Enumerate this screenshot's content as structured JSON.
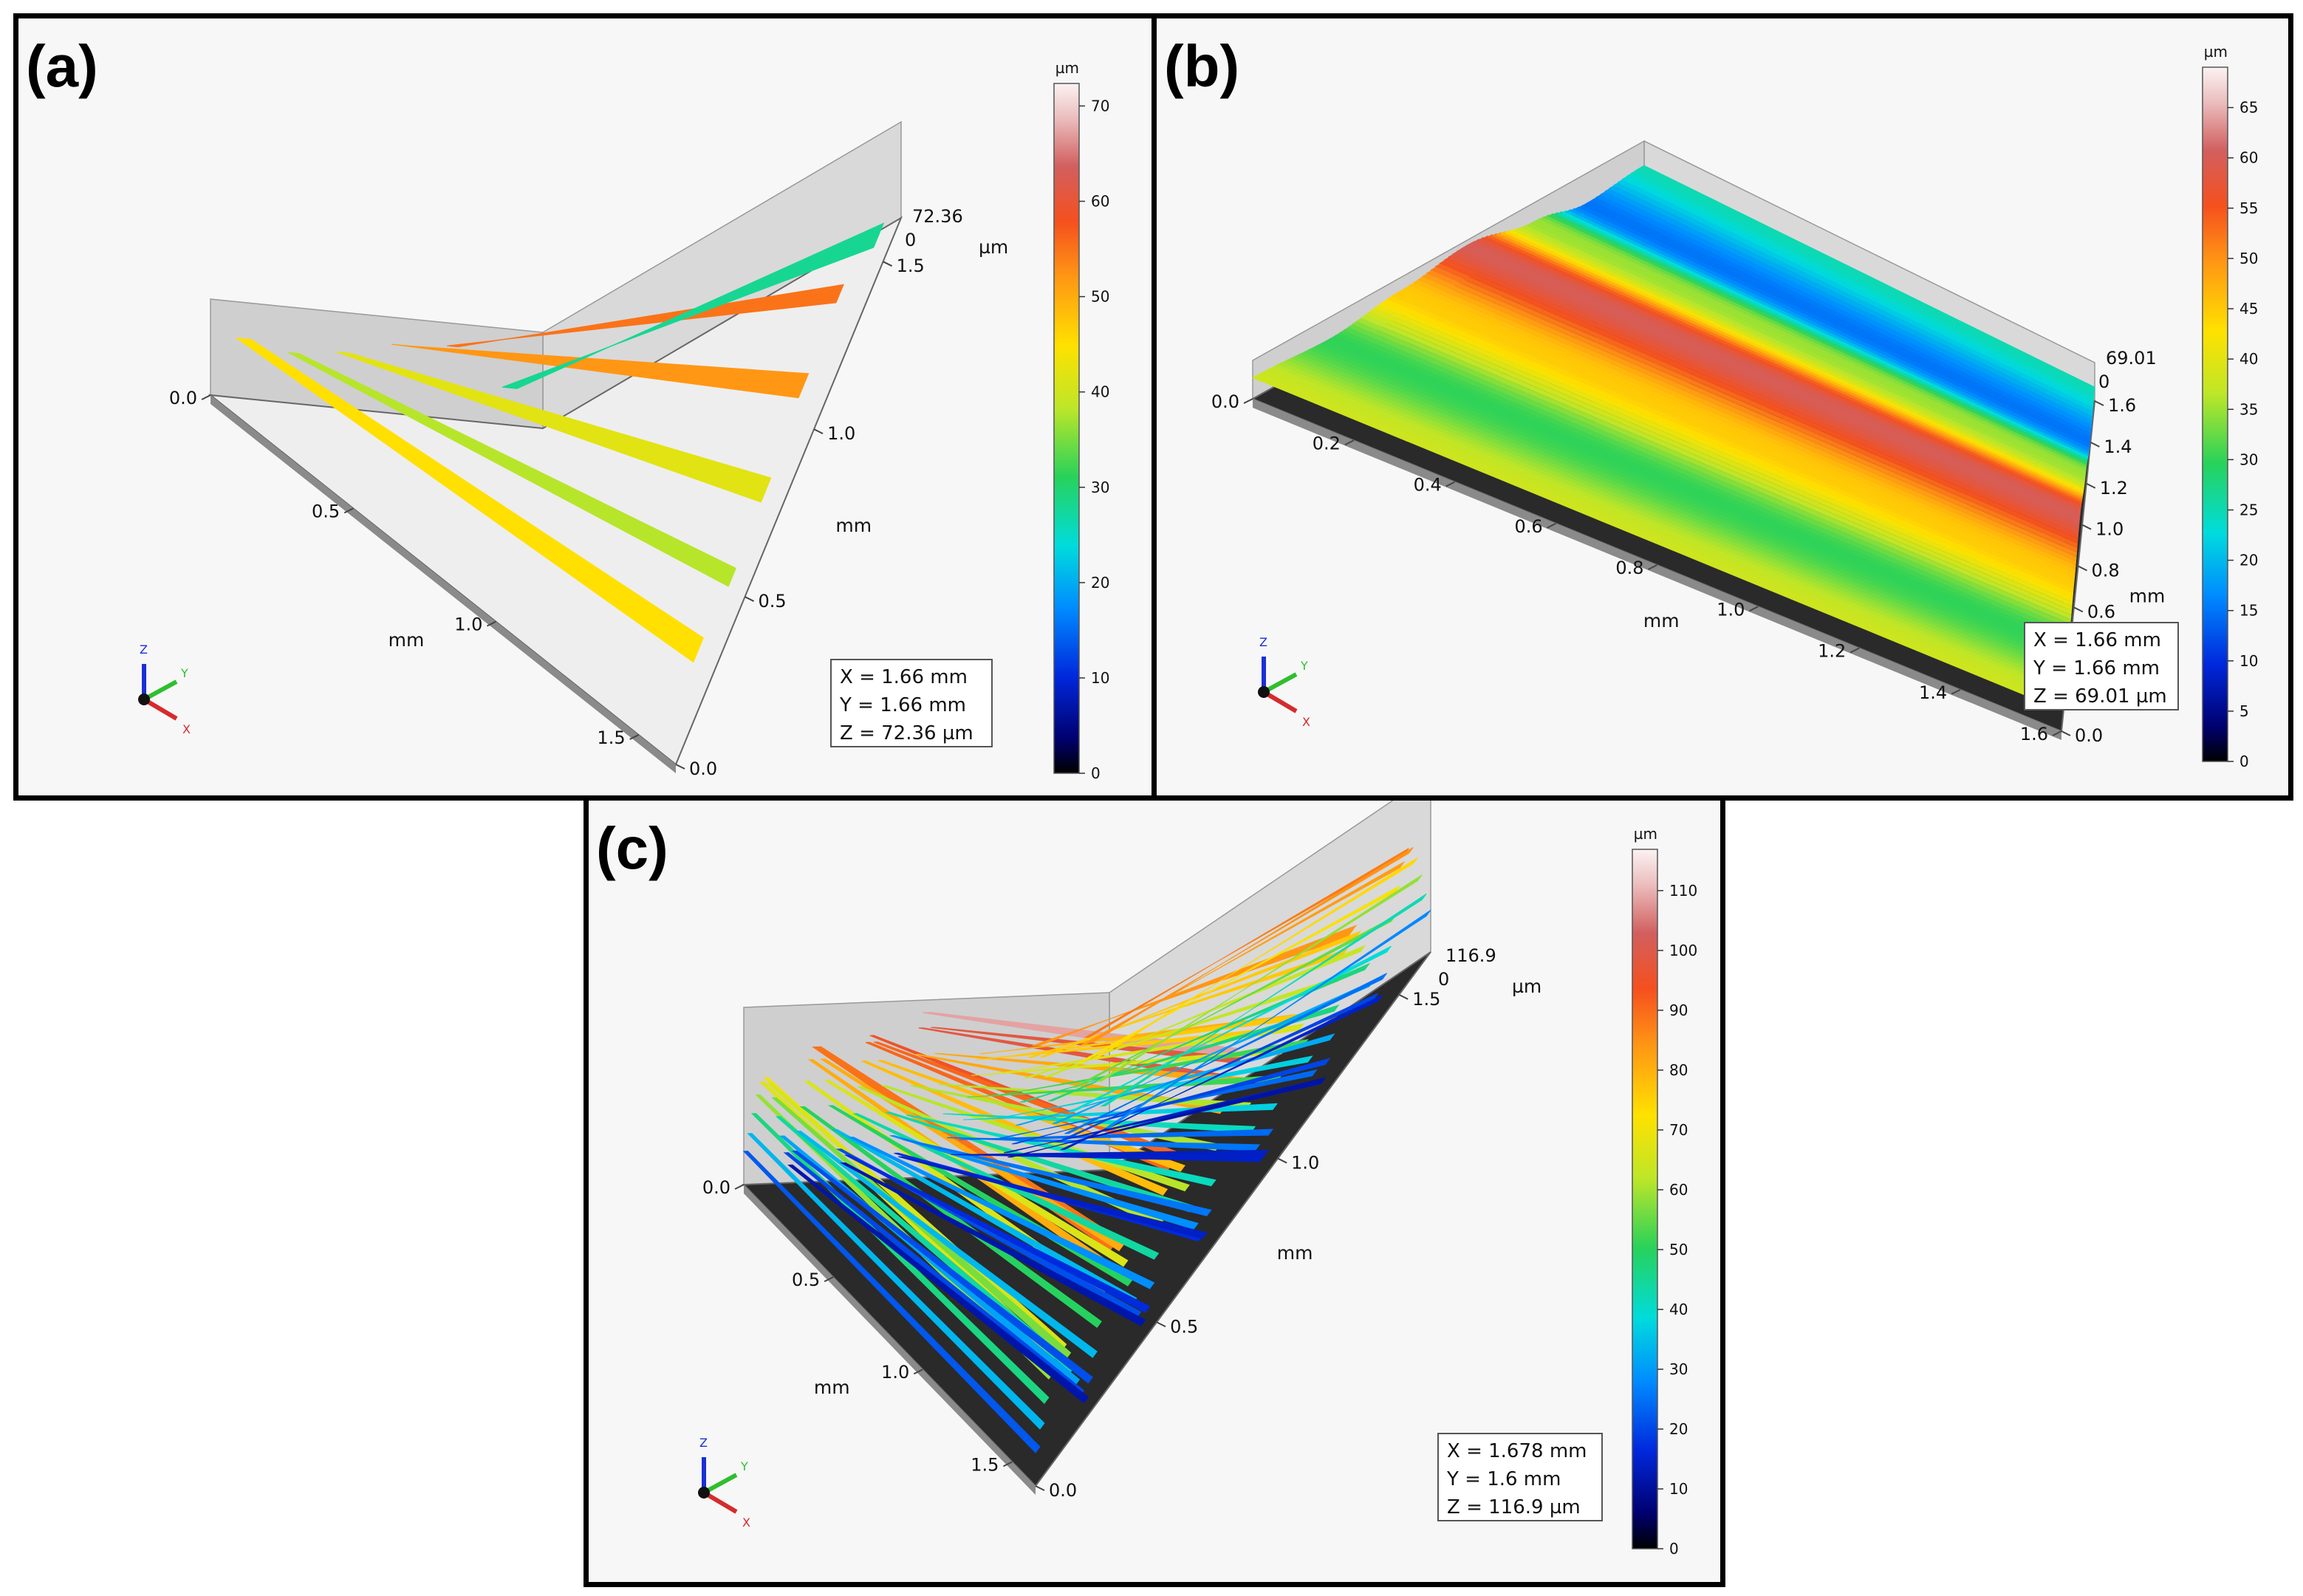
{
  "chart_data": [
    {
      "type": "heatmap",
      "panel_label": "(a)",
      "z_unit": "µm",
      "colorbar": {
        "unit": "µm",
        "min": 0,
        "max": 72.36,
        "ticks": [
          "0",
          "10",
          "20",
          "30",
          "40",
          "50",
          "60",
          "70"
        ]
      },
      "x_axis": {
        "label": "mm",
        "ticks": [
          "0.0",
          "0.5",
          "1.0",
          "1.5"
        ]
      },
      "y_axis": {
        "label": "mm",
        "ticks": [
          "0.0",
          "0.5",
          "1.0",
          "1.5"
        ]
      },
      "z_axis": {
        "label": "µm",
        "ticks": [
          "0",
          "72.36"
        ]
      },
      "info": [
        "X = 1.66 mm",
        "Y = 1.66 mm",
        "Z = 72.36 µm"
      ],
      "triad": {
        "x": "X",
        "y": "Y",
        "z": "Z"
      },
      "surface": "tracks",
      "tracks": [
        {
          "position": 0.1,
          "height": 45
        },
        {
          "position": 0.25,
          "height": 38
        },
        {
          "position": 0.4,
          "height": 42
        },
        {
          "position": 0.57,
          "height": 52
        },
        {
          "position": 0.73,
          "height": 55
        },
        {
          "position": 0.9,
          "height": 28
        }
      ]
    },
    {
      "type": "heatmap",
      "panel_label": "(b)",
      "z_unit": "µm",
      "colorbar": {
        "unit": "µm",
        "min": 0,
        "max": 69.01,
        "ticks": [
          "0",
          "5",
          "10",
          "15",
          "20",
          "25",
          "30",
          "35",
          "40",
          "45",
          "50",
          "55",
          "60",
          "65"
        ]
      },
      "x_axis": {
        "label": "mm",
        "ticks": [
          "0.0",
          "0.2",
          "0.4",
          "0.6",
          "0.8",
          "1.0",
          "1.2",
          "1.4",
          "1.6"
        ]
      },
      "y_axis": {
        "label": "mm",
        "ticks": [
          "0.0",
          "0.2",
          "0.4",
          "0.6",
          "0.8",
          "1.0",
          "1.2",
          "1.4",
          "1.6"
        ]
      },
      "z_axis": {
        "label": "",
        "ticks": [
          "0",
          "69.01"
        ]
      },
      "info": [
        "X = 1.66 mm",
        "Y = 1.66 mm",
        "Z = 69.01 µm"
      ],
      "triad": {
        "x": "X",
        "y": "Y",
        "z": "Z"
      },
      "surface": "bands",
      "bands": [
        {
          "stop": 0.0,
          "height": 38
        },
        {
          "stop": 0.2,
          "height": 30
        },
        {
          "stop": 0.38,
          "height": 45
        },
        {
          "stop": 0.55,
          "height": 60
        },
        {
          "stop": 0.72,
          "height": 35
        },
        {
          "stop": 0.85,
          "height": 15
        },
        {
          "stop": 1.0,
          "height": 25
        }
      ]
    },
    {
      "type": "heatmap",
      "panel_label": "(c)",
      "z_unit": "µm",
      "colorbar": {
        "unit": "µm",
        "min": 0,
        "max": 116.9,
        "ticks": [
          "0",
          "10",
          "20",
          "30",
          "40",
          "50",
          "60",
          "70",
          "80",
          "90",
          "100",
          "110"
        ]
      },
      "x_axis": {
        "label": "mm",
        "ticks": [
          "0.0",
          "0.5",
          "1.0",
          "1.5"
        ]
      },
      "y_axis": {
        "label": "mm",
        "ticks": [
          "0.0",
          "0.5",
          "1.0",
          "1.5"
        ]
      },
      "z_axis": {
        "label": "µm",
        "ticks": [
          "0",
          "116.9"
        ]
      },
      "info": [
        "X = 1.678 mm",
        "Y = 1.6 mm",
        "Z = 116.9 µm"
      ],
      "triad": {
        "x": "X",
        "y": "Y",
        "z": "Z"
      },
      "surface": "ridges",
      "ridges": [
        {
          "position": 0.06,
          "height": 70
        },
        {
          "position": 0.2,
          "height": 90
        },
        {
          "position": 0.35,
          "height": 95
        },
        {
          "position": 0.5,
          "height": 110
        },
        {
          "position": 0.65,
          "height": 80
        },
        {
          "position": 0.8,
          "height": 85
        },
        {
          "position": 0.94,
          "height": 88
        }
      ]
    }
  ]
}
